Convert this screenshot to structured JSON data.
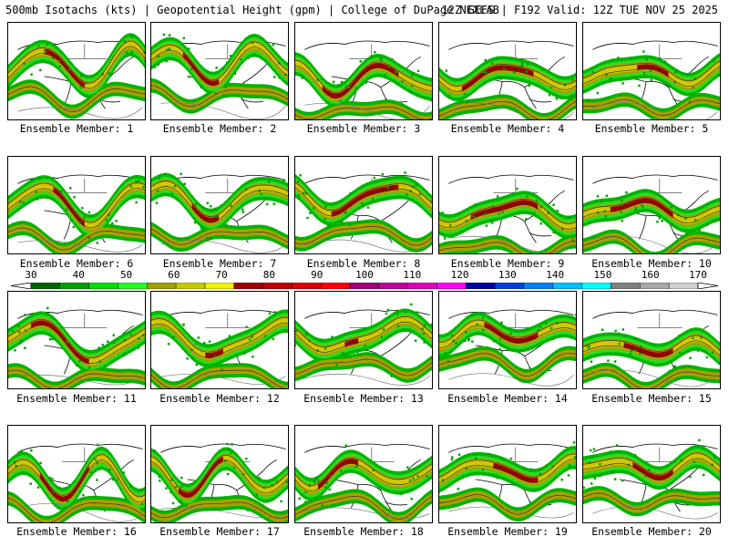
{
  "header": {
    "left": "500mb Isotachs (kts) | Geopotential Height (gpm) | College of DuPage NEXLAB",
    "right": "12Z GEFS | F192 Valid: 12Z TUE NOV 25 2025"
  },
  "colorbar": {
    "ticks": [
      "30",
      "40",
      "50",
      "60",
      "70",
      "80",
      "90",
      "100",
      "110",
      "120",
      "130",
      "140",
      "150",
      "160",
      "170"
    ],
    "colors": [
      "#006400",
      "#00a000",
      "#00e000",
      "#22ff22",
      "#a0a000",
      "#c8c800",
      "#f0f000",
      "#a00000",
      "#c00000",
      "#e00000",
      "#ff0000",
      "#a0007a",
      "#c000a0",
      "#e000c0",
      "#ff00ff",
      "#0000a0",
      "#0040e0",
      "#0080ff",
      "#00c0ff",
      "#00ffff",
      "#808080",
      "#a8a8a8",
      "#d0d0d0"
    ]
  },
  "members": [
    {
      "label": "Ensemble Member: 1"
    },
    {
      "label": "Ensemble Member: 2"
    },
    {
      "label": "Ensemble Member: 3"
    },
    {
      "label": "Ensemble Member: 4"
    },
    {
      "label": "Ensemble Member: 5"
    },
    {
      "label": "Ensemble Member: 6"
    },
    {
      "label": "Ensemble Member: 7"
    },
    {
      "label": "Ensemble Member: 8"
    },
    {
      "label": "Ensemble Member: 9"
    },
    {
      "label": "Ensemble Member: 10"
    },
    {
      "label": "Ensemble Member: 11"
    },
    {
      "label": "Ensemble Member: 12"
    },
    {
      "label": "Ensemble Member: 13"
    },
    {
      "label": "Ensemble Member: 14"
    },
    {
      "label": "Ensemble Member: 15"
    },
    {
      "label": "Ensemble Member: 16"
    },
    {
      "label": "Ensemble Member: 17"
    },
    {
      "label": "Ensemble Member: 18"
    },
    {
      "label": "Ensemble Member: 19"
    },
    {
      "label": "Ensemble Member: 20"
    }
  ]
}
